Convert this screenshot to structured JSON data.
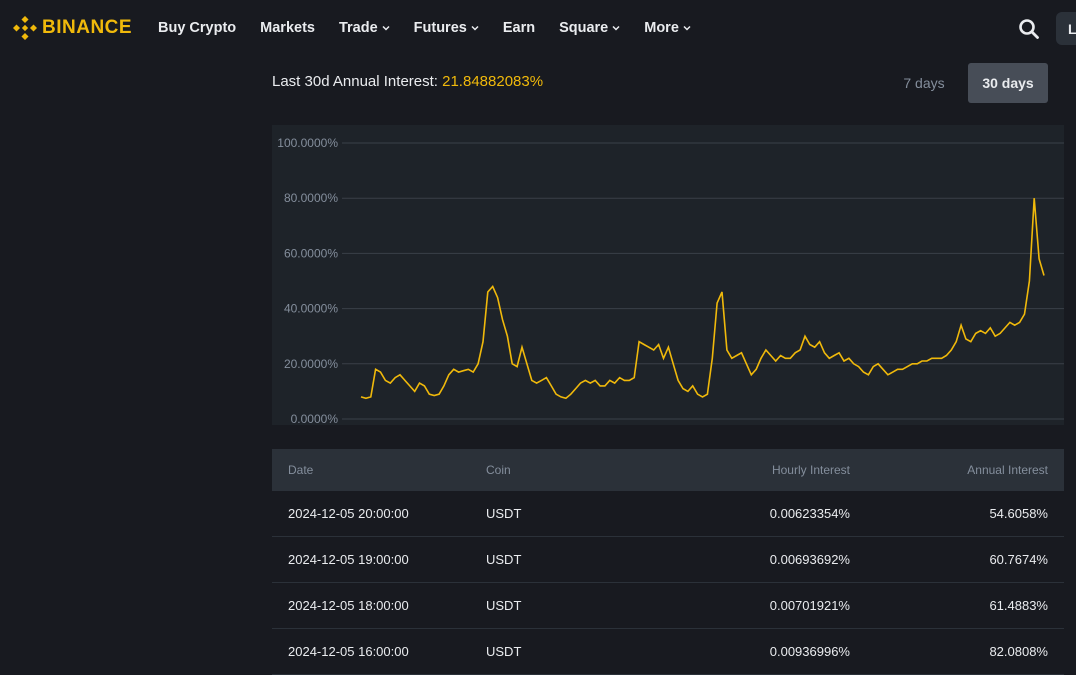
{
  "header": {
    "logo_text": "BINANCE",
    "nav": [
      {
        "label": "Buy Crypto",
        "dropdown": false
      },
      {
        "label": "Markets",
        "dropdown": false
      },
      {
        "label": "Trade",
        "dropdown": true
      },
      {
        "label": "Futures",
        "dropdown": true
      },
      {
        "label": "Earn",
        "dropdown": false
      },
      {
        "label": "Square",
        "dropdown": true
      },
      {
        "label": "More",
        "dropdown": true
      }
    ],
    "login_label": "L",
    "icons": {
      "logo": "binance-diamond-icon",
      "search": "search-icon",
      "chevron": "chevron-down-icon"
    },
    "accent_color": "#f0b90b"
  },
  "interest": {
    "label": "Last 30d Annual Interest:",
    "value": "21.84882083%"
  },
  "range": {
    "options": [
      "7 days",
      "30 days"
    ],
    "selected": "30 days"
  },
  "chart_data": {
    "type": "line",
    "y_ticks": [
      "100.0000%",
      "80.0000%",
      "60.0000%",
      "40.0000%",
      "20.0000%",
      "0.0000%"
    ],
    "ylim": [
      0,
      100
    ],
    "grid": true,
    "legend": "none",
    "line_color": "#f0b90b",
    "series": [
      {
        "values": [
          8,
          7.5,
          8,
          18,
          17,
          14,
          13,
          15,
          16,
          14,
          12,
          10,
          13,
          12,
          9,
          8.5,
          9,
          12,
          16,
          18,
          17,
          17.5,
          18,
          17,
          20,
          28,
          46,
          48,
          44,
          36,
          30,
          20,
          19,
          26,
          20,
          14,
          13,
          14,
          15,
          12,
          9,
          8,
          7.5,
          9,
          11,
          13,
          14,
          13,
          14,
          12,
          12,
          14,
          13,
          15,
          14,
          14,
          15,
          28,
          27,
          26,
          25,
          27,
          22,
          26,
          20,
          14,
          11,
          10,
          12,
          9,
          8,
          9,
          22,
          42,
          46,
          25,
          22,
          23,
          24,
          20,
          16,
          18,
          22,
          25,
          23,
          21,
          23,
          22,
          22,
          24,
          25,
          30,
          27,
          26,
          28,
          24,
          22,
          23,
          24,
          21,
          22,
          20,
          19,
          17,
          16,
          19,
          20,
          18,
          16,
          17,
          18,
          18,
          19,
          20,
          20,
          21,
          21,
          22,
          22,
          22,
          23,
          25,
          28,
          34,
          29,
          28,
          31,
          32,
          31,
          33,
          30,
          31,
          33,
          35,
          34,
          35,
          38,
          50,
          80,
          58,
          52
        ]
      }
    ]
  },
  "table": {
    "headers": {
      "date": "Date",
      "coin": "Coin",
      "hourly": "Hourly Interest",
      "annual": "Annual Interest"
    },
    "rows": [
      {
        "date": "2024-12-05 20:00:00",
        "coin": "USDT",
        "hourly": "0.00623354%",
        "annual": "54.6058%"
      },
      {
        "date": "2024-12-05 19:00:00",
        "coin": "USDT",
        "hourly": "0.00693692%",
        "annual": "60.7674%"
      },
      {
        "date": "2024-12-05 18:00:00",
        "coin": "USDT",
        "hourly": "0.00701921%",
        "annual": "61.4883%"
      },
      {
        "date": "2024-12-05 16:00:00",
        "coin": "USDT",
        "hourly": "0.00936996%",
        "annual": "82.0808%"
      }
    ]
  }
}
